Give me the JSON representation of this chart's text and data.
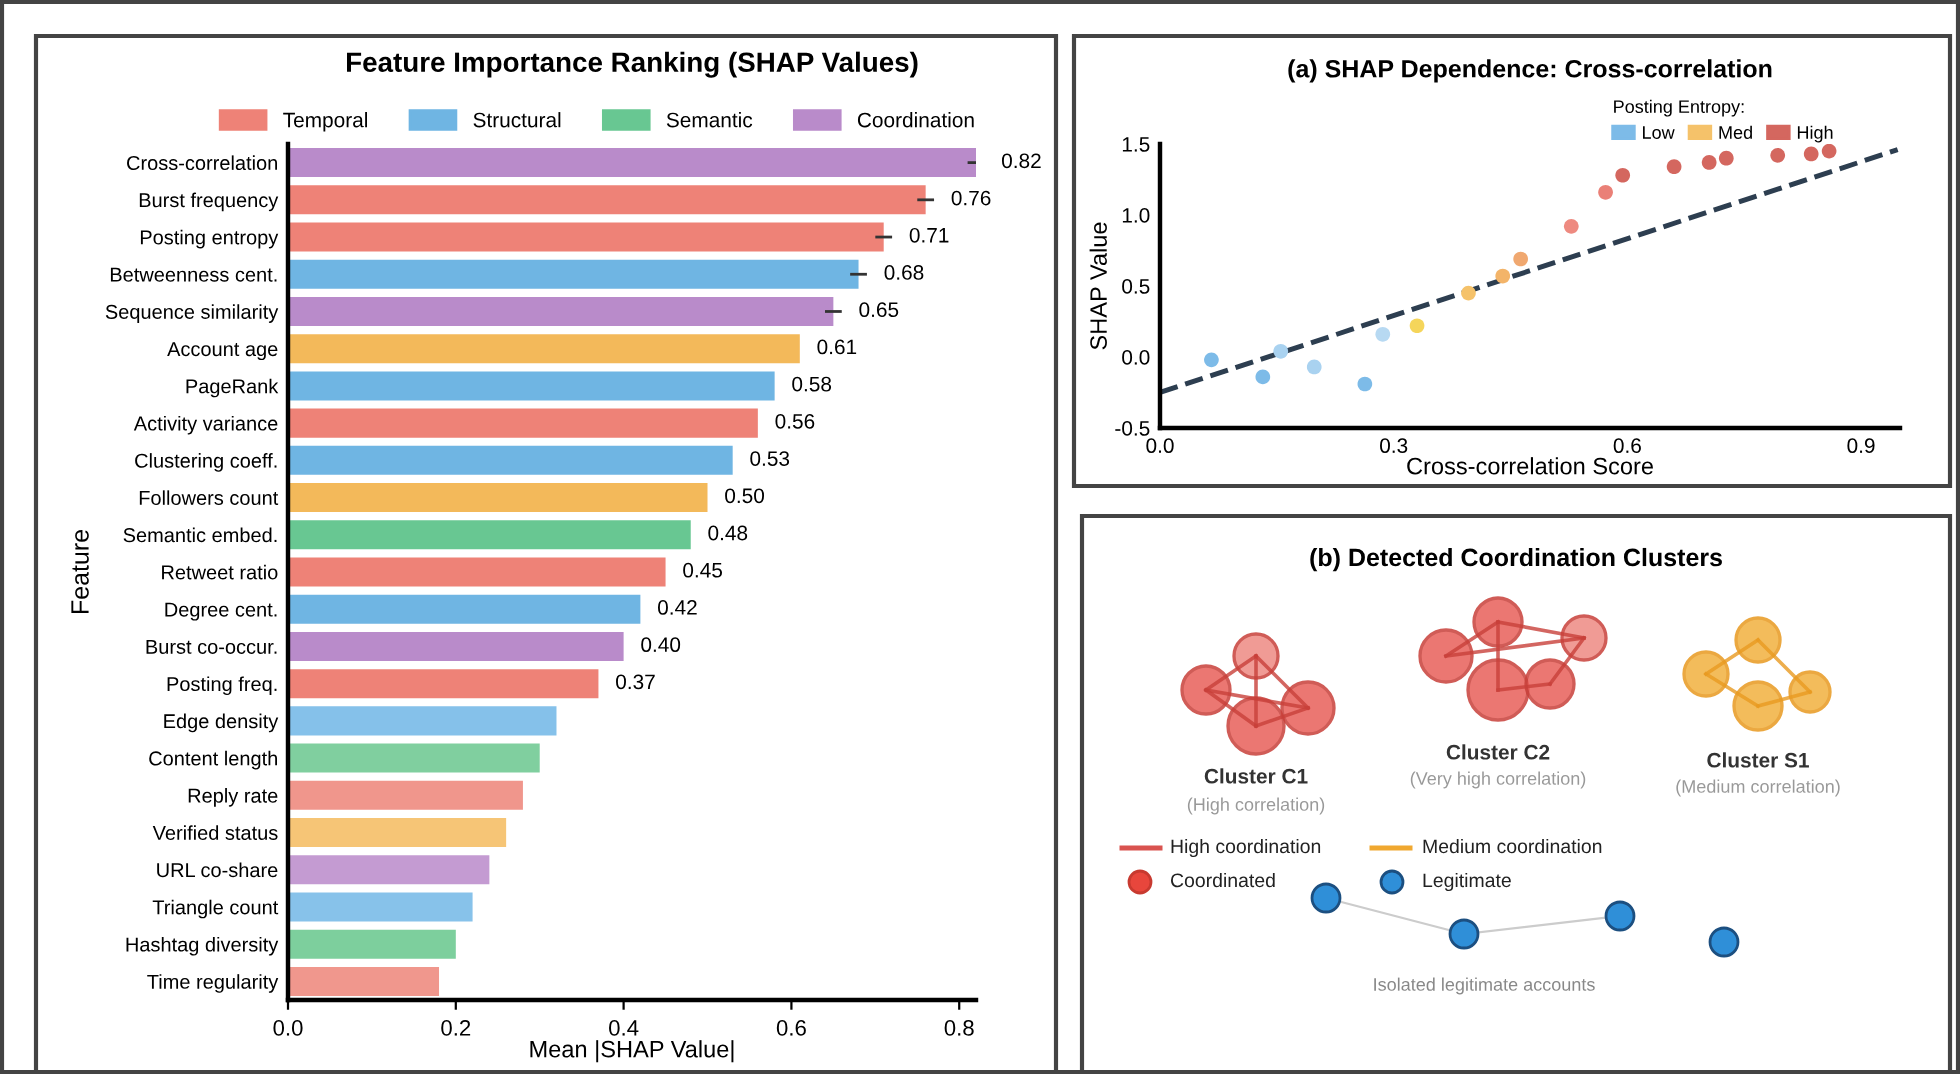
{
  "chart_data": [
    {
      "type": "bar",
      "orientation": "horizontal",
      "title": "Feature Importance Ranking (SHAP Values)",
      "xlabel": "Mean |SHAP Value|",
      "ylabel": "Feature",
      "categories": [
        "Cross-correlation",
        "Burst frequency",
        "Posting entropy",
        "Betweenness cent.",
        "Sequence similarity",
        "Account age",
        "PageRank",
        "Activity variance",
        "Clustering coeff.",
        "Followers count",
        "Semantic embed.",
        "Retweet ratio",
        "Degree cent.",
        "Burst co-occur.",
        "Posting freq.",
        "Edge density",
        "Content length",
        "Reply rate",
        "Verified status",
        "URL co-share",
        "Triangle count",
        "Hashtag diversity",
        "Time regularity"
      ],
      "series": [
        {
          "name": "Temporal",
          "color": "#ee8277",
          "values": [
            null,
            0.76,
            0.71,
            null,
            null,
            null,
            null,
            0.56,
            null,
            null,
            null,
            0.45,
            null,
            null,
            0.37,
            null,
            null,
            0.28,
            null,
            null,
            null,
            null,
            0.18
          ],
          "colors": [
            null,
            "#ee8277",
            "#ee8277",
            null,
            null,
            null,
            null,
            "#ee8277",
            null,
            null,
            null,
            "#ee8277",
            null,
            null,
            "#ee8277",
            null,
            null,
            "#f0968c",
            null,
            null,
            null,
            null,
            "#f0978d"
          ],
          "errors": [
            null,
            0.01,
            0.01,
            null,
            null,
            null,
            null,
            null,
            null,
            null,
            null,
            null,
            null,
            null,
            null,
            null,
            null,
            null,
            null,
            null,
            null,
            null,
            null
          ],
          "value_labels": [
            null,
            "0.76",
            "0.71",
            null,
            null,
            null,
            null,
            "0.56",
            null,
            null,
            null,
            "0.45",
            null,
            null,
            "0.37",
            null,
            null,
            null,
            null,
            null,
            null,
            null,
            null
          ]
        },
        {
          "name": "Structural",
          "color": "#6fb5e3",
          "values": [
            null,
            null,
            null,
            0.68,
            null,
            null,
            0.58,
            null,
            0.53,
            null,
            null,
            null,
            0.42,
            null,
            null,
            0.32,
            null,
            null,
            null,
            null,
            0.22,
            null,
            null
          ],
          "colors": [
            null,
            null,
            null,
            "#6fb5e3",
            null,
            null,
            "#6fb5e3",
            null,
            "#6fb5e3",
            null,
            null,
            null,
            "#6fb5e3",
            null,
            null,
            "#85c1ea",
            null,
            null,
            null,
            null,
            "#87c2ea",
            null,
            null
          ],
          "errors": [
            null,
            null,
            null,
            0.01,
            null,
            null,
            null,
            null,
            null,
            null,
            null,
            null,
            null,
            null,
            null,
            null,
            null,
            null,
            null,
            null,
            null,
            null,
            null
          ],
          "value_labels": [
            null,
            null,
            null,
            "0.68",
            null,
            null,
            "0.58",
            null,
            "0.53",
            null,
            null,
            null,
            "0.42",
            null,
            null,
            null,
            null,
            null,
            null,
            null,
            null,
            null,
            null
          ]
        },
        {
          "name": "Semantic",
          "color": "#68c792",
          "values": [
            null,
            null,
            null,
            null,
            null,
            null,
            null,
            null,
            null,
            null,
            0.48,
            null,
            null,
            null,
            null,
            null,
            0.3,
            null,
            null,
            null,
            null,
            0.2,
            null
          ],
          "colors": [
            null,
            null,
            null,
            null,
            null,
            null,
            null,
            null,
            null,
            null,
            "#68c792",
            null,
            null,
            null,
            null,
            null,
            "#80cf9f",
            null,
            null,
            null,
            null,
            "#7dcf9d",
            null
          ],
          "value_labels": [
            null,
            null,
            null,
            null,
            null,
            null,
            null,
            null,
            null,
            null,
            "0.48",
            null,
            null,
            null,
            null,
            null,
            null,
            null,
            null,
            null,
            null,
            null,
            null
          ]
        },
        {
          "name": "Coordination",
          "color": "#b98bca",
          "values": [
            0.82,
            null,
            null,
            null,
            0.65,
            null,
            null,
            null,
            null,
            null,
            null,
            null,
            null,
            0.4,
            null,
            null,
            null,
            null,
            null,
            0.24,
            null,
            null,
            null
          ],
          "colors": [
            "#b98bca",
            null,
            null,
            null,
            "#b98bca",
            null,
            null,
            null,
            null,
            null,
            null,
            null,
            null,
            "#b98bca",
            null,
            null,
            null,
            null,
            null,
            "#c49bd2",
            null,
            null,
            null
          ],
          "errors": [
            0.01,
            null,
            null,
            null,
            0.01,
            null,
            null,
            null,
            null,
            null,
            null,
            null,
            null,
            null,
            null,
            null,
            null,
            null,
            null,
            null,
            null,
            null,
            null
          ],
          "value_labels": [
            "0.82",
            null,
            null,
            null,
            "0.65",
            null,
            null,
            null,
            null,
            null,
            null,
            null,
            null,
            "0.40",
            null,
            null,
            null,
            null,
            null,
            null,
            null,
            null,
            null
          ]
        },
        {
          "color": "#f3b95a",
          "values": [
            null,
            null,
            null,
            null,
            null,
            0.61,
            null,
            null,
            null,
            0.5,
            null,
            null,
            null,
            null,
            null,
            null,
            null,
            null,
            0.26,
            null,
            null,
            null,
            null
          ],
          "colors": [
            null,
            null,
            null,
            null,
            null,
            "#f3b95a",
            null,
            null,
            null,
            "#f3b95a",
            null,
            null,
            null,
            null,
            null,
            null,
            null,
            null,
            "#f6c576",
            null,
            null,
            null,
            null
          ],
          "value_labels": [
            null,
            null,
            null,
            null,
            null,
            "0.61",
            null,
            null,
            null,
            "0.50",
            null,
            null,
            null,
            null,
            null,
            null,
            null,
            null,
            null,
            null,
            null,
            null,
            null
          ]
        }
      ],
      "xlim": [
        0,
        0.82
      ],
      "xticks": [
        {
          "value": 0,
          "label": "0.0"
        },
        {
          "value": 0.2,
          "label": "0.2"
        },
        {
          "value": 0.4,
          "label": "0.4"
        },
        {
          "value": 0.6,
          "label": "0.6"
        },
        {
          "value": 0.8,
          "label": "0.8"
        }
      ],
      "legend": "top",
      "grid": false
    },
    {
      "type": "scatter",
      "title": "(a) SHAP Dependence: Cross-correlation",
      "xlabel": "Cross-correlation Score",
      "ylabel": "SHAP Value",
      "legend_title": "Posting Entropy:",
      "series": [
        {
          "name": "Low",
          "color": "#7dbbe8",
          "x": [
            0.066,
            0.132,
            0.155,
            0.198,
            0.263,
            0.286
          ],
          "values": [
            -0.02,
            -0.14,
            0.04,
            -0.07,
            -0.19,
            0.16
          ],
          "colors": [
            "#7dbbe8",
            "#7dbbe8",
            "#a9d2f0",
            "#a9d2f0",
            "#7dbbe8",
            "#b7d9f2"
          ]
        },
        {
          "name": "Med",
          "color": "#f5c26a",
          "x": [
            0.33,
            0.396,
            0.44,
            0.463
          ],
          "values": [
            0.22,
            0.45,
            0.57,
            0.69
          ],
          "colors": [
            "#f5d55a",
            "#f5c26a",
            "#f3b469",
            "#f0a870"
          ]
        },
        {
          "name": "High",
          "color": "#d4675f",
          "x": [
            0.528,
            0.572,
            0.594,
            0.66,
            0.705,
            0.727,
            0.793,
            0.836,
            0.859
          ],
          "values": [
            0.92,
            1.16,
            1.28,
            1.34,
            1.37,
            1.4,
            1.42,
            1.43,
            1.45
          ],
          "colors": [
            "#ee8a80",
            "#ea8077",
            "#d4675f",
            "#d4675f",
            "#d4675f",
            "#d4675f",
            "#d4675f",
            "#d4675f",
            "#d4675f"
          ]
        },
        {
          "type": "line",
          "color": "#2d3e50",
          "line_style": "dashed",
          "x": [
            0,
            0.947
          ],
          "values": [
            -0.25,
            1.46
          ]
        }
      ],
      "xlim": [
        0,
        0.95
      ],
      "xticks": [
        {
          "value": 0,
          "label": "0.0"
        },
        0.3,
        0.6,
        0.9
      ],
      "ylim": [
        -0.5,
        1.5
      ],
      "yticks": [
        -0.5,
        {
          "value": 0,
          "label": "0.0"
        },
        0.5,
        {
          "value": 1,
          "label": "1.0"
        },
        1.5
      ],
      "legend": "top right",
      "grid": false
    },
    {
      "type": "other",
      "title": "(b) Detected Coordination Clusters",
      "annotations": [
        "Cluster C1",
        "(High correlation)",
        "Cluster C2",
        "(Very high correlation)",
        "Cluster S1",
        "(Medium correlation)",
        "High coordination",
        "Medium coordination",
        "Coordinated",
        "Legitimate",
        "Isolated legitimate accounts"
      ]
    }
  ]
}
